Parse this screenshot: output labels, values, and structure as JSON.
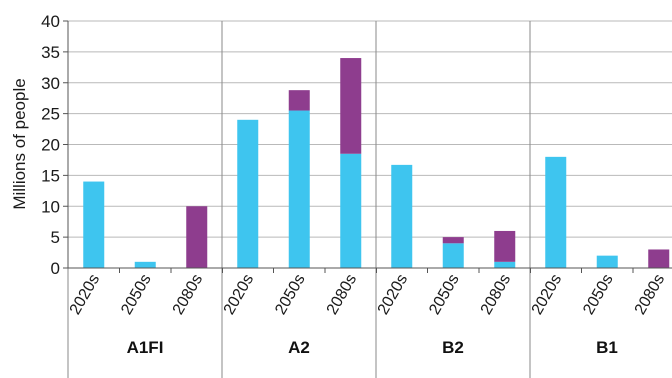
{
  "chart_data": {
    "type": "bar",
    "stacked": true,
    "title": "",
    "xlabel": "",
    "ylabel": "Millions of people",
    "ylim": [
      0,
      40
    ],
    "yticks": [
      0,
      5,
      10,
      15,
      20,
      25,
      30,
      35,
      40
    ],
    "grid": true,
    "groups": [
      {
        "name": "A1FI",
        "categories": [
          "2020s",
          "2050s",
          "2080s"
        ]
      },
      {
        "name": "A2",
        "categories": [
          "2020s",
          "2050s",
          "2080s"
        ]
      },
      {
        "name": "B2",
        "categories": [
          "2020s",
          "2050s",
          "2080s"
        ]
      },
      {
        "name": "B1",
        "categories": [
          "2020s",
          "2050s",
          "2080s"
        ]
      }
    ],
    "series": [
      {
        "color": "#3ec5ef",
        "values": [
          [
            14,
            1,
            0
          ],
          [
            24,
            25.5,
            18.5
          ],
          [
            16.7,
            4,
            1
          ],
          [
            18,
            2,
            0
          ]
        ]
      },
      {
        "color": "#8e3d8e",
        "values": [
          [
            0,
            0,
            10
          ],
          [
            0,
            3.3,
            15.5
          ],
          [
            0,
            1,
            5
          ],
          [
            0,
            0,
            3
          ]
        ]
      }
    ]
  }
}
